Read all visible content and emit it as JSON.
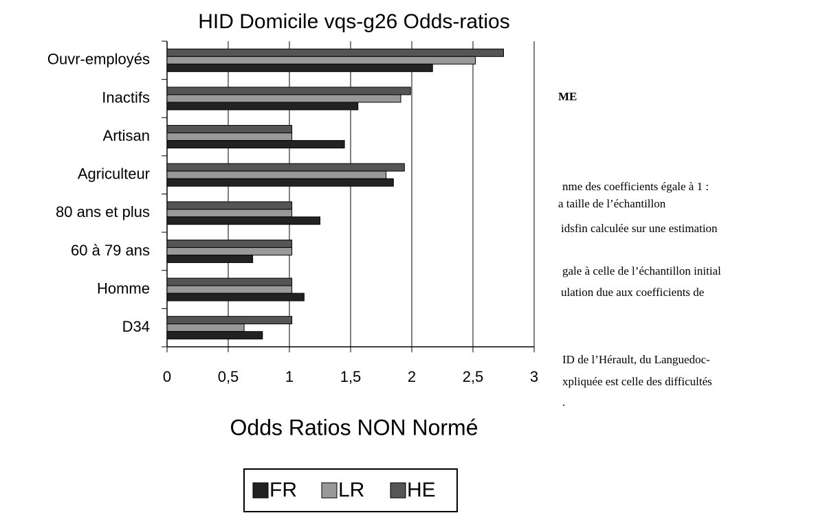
{
  "chart_data": {
    "type": "hbar",
    "title": "HID Domicile vqs-g26 Odds-ratios",
    "x_label": "Odds Ratios NON Normé",
    "categories": [
      "Ouvr-employés",
      "Inactifs",
      "Artisan",
      "Agriculteur",
      "80 ans et plus",
      "60 à 79 ans",
      "Homme",
      "D34"
    ],
    "series": [
      {
        "name": "FR",
        "color": "#222222",
        "values": [
          2.17,
          1.56,
          1.45,
          1.85,
          1.25,
          0.7,
          1.12,
          0.78
        ]
      },
      {
        "name": "LR",
        "color": "#999999",
        "values": [
          2.52,
          1.91,
          1.02,
          1.79,
          1.02,
          1.02,
          1.02,
          0.63
        ]
      },
      {
        "name": "HE",
        "color": "#555555",
        "values": [
          2.75,
          1.99,
          1.02,
          1.94,
          1.02,
          1.02,
          1.02,
          1.02
        ]
      }
    ],
    "xlim": [
      0,
      3
    ],
    "xticks": [
      0,
      {
        "value": 0.5,
        "label": "0,5"
      },
      1,
      {
        "value": 1.5,
        "label": "1,5"
      },
      2,
      {
        "value": 2.5,
        "label": "2,5"
      },
      3
    ],
    "grid": true,
    "legend": "bottom"
  },
  "background_text": [
    {
      "text": "ME",
      "bold": true
    },
    {
      "text": "nme des coefficients égale à 1 :"
    },
    {
      "text": "a taille de l’échantillon"
    },
    {
      "text": "idsfin calculée sur une estimation"
    },
    {
      "text": "gale à celle de l’échantillon initial"
    },
    {
      "text": "ulation due aux coefficients de"
    },
    {
      "text": "ID de l’Hérault, du Languedoc-"
    },
    {
      "text": "xpliquée est celle des difficultés"
    },
    {
      "text": "."
    }
  ]
}
